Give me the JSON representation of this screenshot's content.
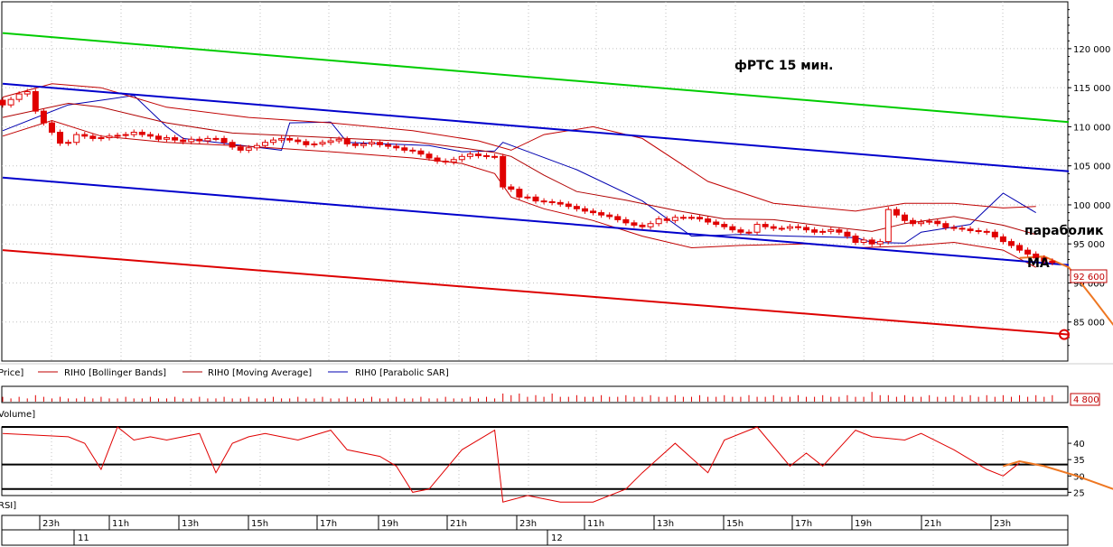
{
  "annotations": {
    "title": "фРТС   15 мин.",
    "parabolic": "параболик",
    "ma": "MA"
  },
  "legend": {
    "price": "Price]",
    "bollinger": "RIH0 [Bollinger Bands]",
    "ma": "RIH0 [Moving Average]",
    "sar": "RIH0 [Parabolic SAR]",
    "volume": "Volume]",
    "rsi": "RSI]"
  },
  "colors": {
    "candle_down": "#e00000",
    "bollinger": "#c00000",
    "moving_average": "#b00000",
    "parabolic_sar": "#0000b0",
    "upper_channel": "#00cc00",
    "mid_channel": "#0000cc",
    "lower_channel": "#dd0000",
    "forecast": "#ee7722",
    "grid": "#c0c0c0"
  },
  "price_axis": {
    "ticks": [
      120000,
      115000,
      110000,
      105000,
      100000,
      95000,
      90000,
      85000
    ],
    "tick_labels": [
      "120 000",
      "115 000",
      "110 000",
      "105 000",
      "100 000",
      "95 000",
      "90 000",
      "85 000"
    ],
    "last_price_label": "92 600"
  },
  "volume_axis": {
    "last_volume_label": "4 800"
  },
  "rsi_axis": {
    "ticks": [
      40,
      35,
      30,
      25
    ],
    "tick_labels": [
      "40",
      "35",
      "30",
      "25"
    ]
  },
  "time_axis": {
    "hour_labels": [
      "23h",
      "11h",
      "13h",
      "15h",
      "17h",
      "19h",
      "21h",
      "23h",
      "11h",
      "13h",
      "15h",
      "17h",
      "19h",
      "21h",
      "23h"
    ],
    "day_labels": [
      "11",
      "12"
    ]
  },
  "chart_data": [
    {
      "type": "candlestick",
      "panel": "price",
      "title": "фРТС   15 мин.",
      "ylim": [
        80000,
        126000
      ],
      "x_range": [
        0,
        130
      ],
      "grid": true,
      "close": [
        112800,
        113500,
        114200,
        114500,
        112000,
        110500,
        109300,
        107900,
        108000,
        109000,
        108800,
        108500,
        108600,
        108800,
        108900,
        109000,
        109300,
        109000,
        108800,
        108400,
        108600,
        108300,
        108100,
        108400,
        108200,
        108500,
        108500,
        108000,
        107400,
        107000,
        107300,
        107600,
        108000,
        108300,
        108500,
        108300,
        108100,
        107700,
        107800,
        108000,
        108200,
        108400,
        107800,
        107600,
        107800,
        108000,
        107700,
        107500,
        107300,
        107000,
        106900,
        106500,
        106000,
        105600,
        105500,
        105800,
        106200,
        106500,
        106300,
        106200,
        106200,
        102300,
        102000,
        101000,
        101000,
        100500,
        100400,
        100300,
        100100,
        99800,
        99500,
        99200,
        99000,
        98700,
        98500,
        98100,
        97700,
        97400,
        97200,
        97600,
        98200,
        98000,
        98400,
        98400,
        98400,
        98200,
        97800,
        97500,
        97200,
        96800,
        96500,
        96500,
        97500,
        97200,
        97000,
        97000,
        97200,
        97100,
        96800,
        96500,
        96600,
        96800,
        96500,
        96000,
        95200,
        95500,
        95000,
        95300,
        99400,
        98700,
        98000,
        97600,
        97800,
        97900,
        97600,
        97100,
        97000,
        96900,
        96700,
        96600,
        96500,
        95900,
        95300,
        94800,
        94200,
        93700,
        93200,
        92800,
        92600
      ],
      "annotations": [
        "параболик",
        "MA"
      ]
    },
    {
      "type": "line",
      "panel": "price",
      "series": [
        {
          "name": "RIH0 [Parabolic SAR]",
          "x": [
            0,
            8,
            16,
            20,
            22,
            34,
            35,
            40,
            42,
            52,
            56,
            60,
            61,
            70,
            78,
            84,
            90,
            96,
            104,
            106,
            110,
            112,
            118,
            122,
            126
          ],
          "y": [
            109500,
            112800,
            114000,
            110000,
            108500,
            107000,
            110500,
            110600,
            108000,
            107600,
            106800,
            106900,
            108000,
            104500,
            100500,
            96000,
            96200,
            96000,
            95800,
            95200,
            95100,
            96500,
            97500,
            101500,
            99000
          ]
        },
        {
          "name": "RIH0 [Moving Average]",
          "x": [
            0,
            8,
            12,
            20,
            28,
            40,
            50,
            56,
            60,
            62,
            66,
            70,
            76,
            82,
            88,
            94,
            100,
            106,
            110,
            116,
            122,
            126
          ],
          "y": [
            111200,
            113000,
            112500,
            110500,
            109200,
            108600,
            108100,
            107300,
            106700,
            106200,
            103800,
            101700,
            100600,
            99300,
            98200,
            98100,
            97300,
            96600,
            97600,
            98500,
            97400,
            96200
          ]
        },
        {
          "name": "RIH0 [Bollinger Bands] upper",
          "x": [
            0,
            6,
            12,
            20,
            30,
            40,
            50,
            58,
            62,
            66,
            72,
            78,
            86,
            94,
            104,
            110,
            116,
            122,
            126
          ],
          "y": [
            113800,
            115500,
            115000,
            112500,
            111200,
            110500,
            109500,
            108200,
            107000,
            109000,
            110000,
            108500,
            103000,
            100200,
            99200,
            100200,
            100200,
            99600,
            99800
          ]
        },
        {
          "name": "RIH0 [Bollinger Bands] lower",
          "x": [
            0,
            6,
            12,
            20,
            30,
            40,
            50,
            56,
            60,
            62,
            66,
            72,
            78,
            84,
            90,
            98,
            104,
            110,
            116,
            122,
            126
          ],
          "y": [
            108800,
            110800,
            108800,
            108000,
            107500,
            106800,
            106000,
            105300,
            104000,
            101000,
            99500,
            98000,
            96000,
            94500,
            94800,
            95000,
            94500,
            94700,
            95200,
            94200,
            92000
          ]
        },
        {
          "name": "upper channel",
          "x": [
            0,
            130
          ],
          "y": [
            122000,
            110600
          ]
        },
        {
          "name": "middle channel",
          "x": [
            0,
            130
          ],
          "y": [
            115500,
            104300
          ]
        },
        {
          "name": "channel support",
          "x": [
            0,
            130
          ],
          "y": [
            103500,
            92300
          ]
        },
        {
          "name": "lower channel",
          "x": [
            0,
            130
          ],
          "y": [
            94200,
            83400
          ]
        },
        {
          "name": "forecast",
          "x": [
            124,
            127,
            130,
            133,
            137
          ],
          "y": [
            93200,
            93400,
            92000,
            88000,
            82500
          ]
        }
      ]
    },
    {
      "type": "bar",
      "panel": "volume",
      "values": [
        3,
        2,
        3,
        2,
        4,
        3,
        2,
        3,
        2,
        2,
        3,
        2,
        3,
        2,
        2,
        3,
        2,
        2,
        3,
        2,
        2,
        3,
        2,
        2,
        3,
        2,
        2,
        3,
        2,
        2,
        3,
        2,
        2,
        3,
        2,
        2,
        3,
        2,
        2,
        3,
        2,
        2,
        3,
        2,
        2,
        3,
        2,
        2,
        3,
        2,
        2,
        3,
        2,
        2,
        3,
        2,
        2,
        3,
        2,
        3,
        2,
        5,
        4,
        5,
        3,
        4,
        3,
        5,
        3,
        3,
        4,
        3,
        3,
        4,
        3,
        3,
        4,
        3,
        3,
        4,
        3,
        3,
        4,
        3,
        3,
        4,
        3,
        3,
        4,
        3,
        3,
        4,
        3,
        3,
        4,
        3,
        3,
        4,
        3,
        3,
        4,
        3,
        3,
        4,
        3,
        3,
        6,
        4,
        4,
        3,
        4,
        3,
        3,
        4,
        3,
        3,
        4,
        3,
        4,
        3,
        4,
        3,
        4,
        3,
        4,
        3,
        4,
        3,
        4
      ]
    },
    {
      "type": "line",
      "panel": "rsi",
      "ylim": [
        24,
        45
      ],
      "grid": true,
      "series": [
        {
          "name": "RSI",
          "x": [
            0,
            8,
            10,
            12,
            14,
            16,
            18,
            20,
            24,
            26,
            28,
            30,
            32,
            34,
            36,
            40,
            42,
            46,
            48,
            50,
            52,
            56,
            60,
            61,
            64,
            68,
            72,
            76,
            78,
            82,
            86,
            88,
            92,
            96,
            98,
            100,
            104,
            106,
            110,
            112,
            116,
            118,
            120,
            122,
            124
          ],
          "y": [
            43,
            42,
            40,
            32,
            45,
            41,
            42,
            41,
            43,
            31,
            40,
            42,
            43,
            42,
            41,
            44,
            38,
            36,
            33,
            25,
            26,
            38,
            44,
            22,
            24,
            22,
            22,
            26,
            31,
            40,
            31,
            41,
            45,
            33,
            37,
            33,
            44,
            42,
            41,
            43,
            38,
            35,
            32,
            30,
            34
          ]
        },
        {
          "name": "forecast",
          "x": [
            122,
            124,
            127,
            131,
            136
          ],
          "y": [
            33,
            34.5,
            33,
            30,
            25.5
          ]
        }
      ]
    }
  ]
}
